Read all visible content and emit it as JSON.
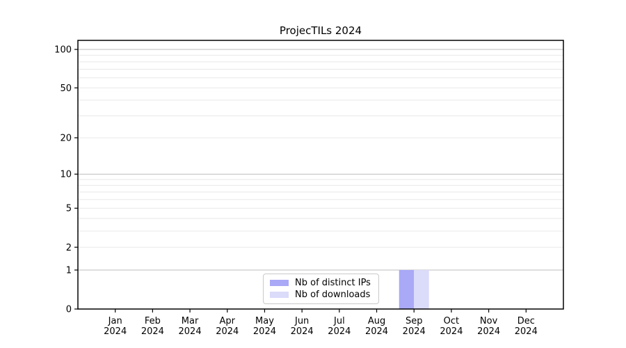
{
  "title": "ProjecTILs 2024",
  "chart_data": {
    "type": "bar",
    "title": "ProjecTILs 2024",
    "categories": [
      "Jan",
      "Feb",
      "Mar",
      "Apr",
      "May",
      "Jun",
      "Jul",
      "Aug",
      "Sep",
      "Oct",
      "Nov",
      "Dec"
    ],
    "x_tick_sublabel": "2024",
    "series": [
      {
        "name": "Nb of distinct IPs",
        "color": "#a9a9f7",
        "values": [
          0,
          0,
          0,
          0,
          0,
          0,
          0,
          0,
          1,
          0,
          0,
          0
        ]
      },
      {
        "name": "Nb of downloads",
        "color": "#dbdbfa",
        "values": [
          0,
          0,
          0,
          0,
          0,
          0,
          0,
          0,
          1,
          0,
          0,
          0
        ]
      }
    ],
    "yscale": "log1p",
    "ylim": [
      0,
      118
    ],
    "yticks": [
      0,
      1,
      2,
      5,
      10,
      20,
      50,
      100
    ],
    "major_gridlines": [
      1,
      10,
      100
    ],
    "minor_gridlines": [
      2,
      3,
      4,
      5,
      6,
      7,
      8,
      9,
      20,
      30,
      40,
      50,
      60,
      70,
      80,
      90
    ],
    "grid": true,
    "legend_position": "lower center"
  },
  "colors": {
    "background": "#ffffff",
    "spine": "#000000",
    "tick_text": "#000000",
    "grid_major": "#bcbcbc",
    "grid_minor": "#e8e8e8",
    "legend_border": "#c9c9c9",
    "bar_distinct_ips": "#a9a9f7",
    "bar_downloads": "#dbdbfa"
  }
}
